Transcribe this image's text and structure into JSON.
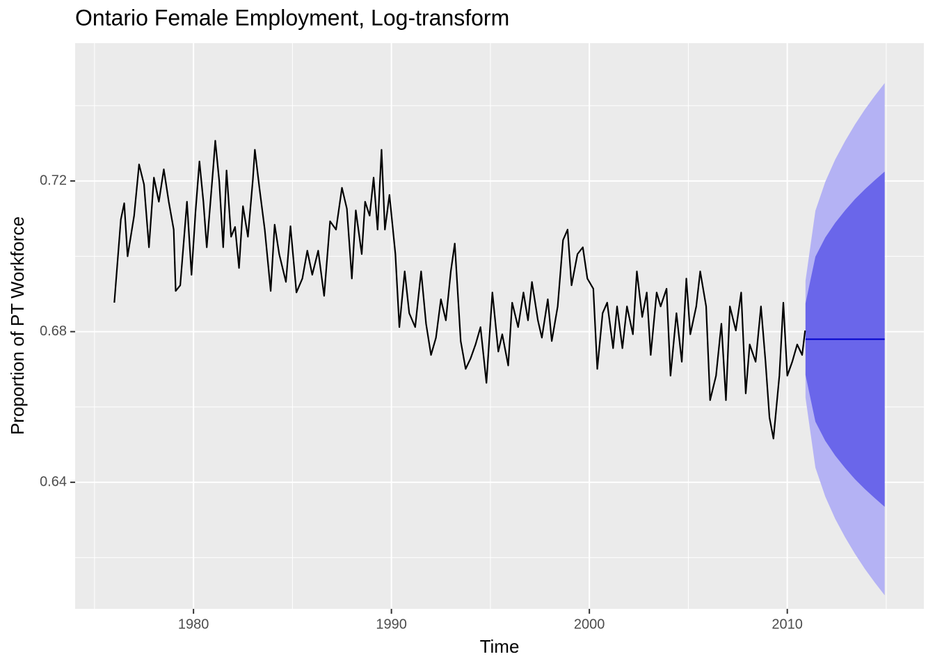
{
  "chart_data": {
    "type": "forecast",
    "title": "Ontario Female Employment, Log-transform",
    "x_label": "Time",
    "y_label": "Proportion of PT Workforce",
    "xlim": [
      1974.02,
      2016.9
    ],
    "ylim": [
      0.6064,
      0.7566
    ],
    "xticks": [
      1980,
      1990,
      2000,
      2010
    ],
    "yticks": [
      0.64,
      0.68,
      0.72
    ],
    "x_minor_grid": [
      1975,
      1985,
      1995,
      2005,
      2015
    ],
    "y_minor_grid": [
      0.62,
      0.66,
      0.7,
      0.74
    ],
    "grid": true,
    "history": {
      "color": "#000000",
      "x": [
        1976.0,
        1976.33,
        1976.5,
        1976.67,
        1977.0,
        1977.25,
        1977.5,
        1977.75,
        1978.0,
        1978.25,
        1978.5,
        1978.75,
        1979.0,
        1979.1,
        1979.33,
        1979.67,
        1979.9,
        1980.1,
        1980.3,
        1980.5,
        1980.67,
        1981.0,
        1981.1,
        1981.3,
        1981.5,
        1981.67,
        1981.9,
        1982.1,
        1982.3,
        1982.5,
        1982.75,
        1983.0,
        1983.1,
        1983.33,
        1983.6,
        1983.9,
        1984.1,
        1984.33,
        1984.67,
        1984.9,
        1985.2,
        1985.5,
        1985.75,
        1986.0,
        1986.3,
        1986.6,
        1986.9,
        1987.2,
        1987.5,
        1987.75,
        1988.0,
        1988.2,
        1988.5,
        1988.67,
        1988.9,
        1989.1,
        1989.3,
        1989.5,
        1989.67,
        1989.9,
        1990.2,
        1990.4,
        1990.67,
        1990.9,
        1991.2,
        1991.5,
        1991.75,
        1992.0,
        1992.25,
        1992.5,
        1992.75,
        1993.0,
        1993.2,
        1993.5,
        1993.75,
        1994.0,
        1994.25,
        1994.5,
        1994.8,
        1995.1,
        1995.4,
        1995.6,
        1995.9,
        1996.1,
        1996.4,
        1996.67,
        1996.9,
        1997.1,
        1997.4,
        1997.6,
        1997.9,
        1998.1,
        1998.4,
        1998.67,
        1998.9,
        1999.1,
        1999.4,
        1999.67,
        1999.9,
        2000.2,
        2000.4,
        2000.67,
        2000.9,
        2001.2,
        2001.4,
        2001.67,
        2001.9,
        2002.2,
        2002.4,
        2002.67,
        2002.9,
        2003.1,
        2003.4,
        2003.6,
        2003.9,
        2004.1,
        2004.4,
        2004.67,
        2004.9,
        2005.1,
        2005.4,
        2005.6,
        2005.9,
        2006.1,
        2006.4,
        2006.67,
        2006.9,
        2007.1,
        2007.4,
        2007.67,
        2007.9,
        2008.1,
        2008.4,
        2008.67,
        2008.9,
        2009.1,
        2009.3,
        2009.6,
        2009.8,
        2010.0,
        2010.25,
        2010.5,
        2010.75,
        2010.9
      ],
      "values": [
        0.6877,
        0.7098,
        0.7141,
        0.7,
        0.7108,
        0.7244,
        0.7191,
        0.7024,
        0.7209,
        0.7145,
        0.7231,
        0.7145,
        0.7071,
        0.6908,
        0.6923,
        0.7145,
        0.6951,
        0.7117,
        0.7252,
        0.7145,
        0.7024,
        0.7237,
        0.7307,
        0.72,
        0.7024,
        0.7228,
        0.7052,
        0.7078,
        0.6969,
        0.7133,
        0.7052,
        0.7204,
        0.7283,
        0.7182,
        0.7071,
        0.6908,
        0.7084,
        0.7006,
        0.6932,
        0.708,
        0.6904,
        0.6941,
        0.7015,
        0.6951,
        0.7015,
        0.6895,
        0.7093,
        0.7071,
        0.7182,
        0.7126,
        0.6941,
        0.7122,
        0.7006,
        0.7145,
        0.7108,
        0.7209,
        0.7071,
        0.7283,
        0.7071,
        0.7163,
        0.7006,
        0.6812,
        0.696,
        0.6849,
        0.6812,
        0.696,
        0.6821,
        0.6738,
        0.6784,
        0.6886,
        0.683,
        0.696,
        0.7034,
        0.6775,
        0.6701,
        0.6729,
        0.6766,
        0.6812,
        0.6664,
        0.6904,
        0.6747,
        0.6793,
        0.671,
        0.6877,
        0.6812,
        0.6904,
        0.683,
        0.6932,
        0.683,
        0.6784,
        0.6886,
        0.6775,
        0.6867,
        0.7043,
        0.7071,
        0.6923,
        0.7006,
        0.7024,
        0.6941,
        0.6914,
        0.6701,
        0.6849,
        0.6877,
        0.6756,
        0.6867,
        0.6756,
        0.6867,
        0.6793,
        0.696,
        0.6839,
        0.6904,
        0.6738,
        0.6904,
        0.6867,
        0.6914,
        0.6683,
        0.6849,
        0.672,
        0.6941,
        0.6793,
        0.6867,
        0.696,
        0.6867,
        0.6618,
        0.6683,
        0.6821,
        0.6618,
        0.6867,
        0.6803,
        0.6904,
        0.6636,
        0.6766,
        0.672,
        0.6867,
        0.672,
        0.6572,
        0.6516,
        0.6683,
        0.6877,
        0.6683,
        0.672,
        0.6766,
        0.6738,
        0.6803
      ]
    },
    "forecast": {
      "color": "#0000cc",
      "x": [
        2010.92,
        2011.42,
        2011.92,
        2012.42,
        2012.92,
        2013.42,
        2013.92,
        2014.42,
        2014.92
      ],
      "values": [
        0.678,
        0.678,
        0.678,
        0.678,
        0.678,
        0.678,
        0.678,
        0.678,
        0.678
      ]
    },
    "intervals": [
      {
        "color": "#b4b2f4",
        "lower": [
          0.6625,
          0.6439,
          0.6362,
          0.6303,
          0.6254,
          0.621,
          0.617,
          0.6134,
          0.61
        ],
        "upper": [
          0.6935,
          0.7121,
          0.7198,
          0.7257,
          0.7306,
          0.735,
          0.739,
          0.7426,
          0.746
        ]
      },
      {
        "color": "#6a66ea",
        "lower": [
          0.6685,
          0.6561,
          0.651,
          0.6471,
          0.6438,
          0.6408,
          0.6382,
          0.6358,
          0.6335
        ],
        "upper": [
          0.6875,
          0.6999,
          0.705,
          0.7089,
          0.7122,
          0.7152,
          0.7178,
          0.7202,
          0.7225
        ]
      }
    ]
  }
}
